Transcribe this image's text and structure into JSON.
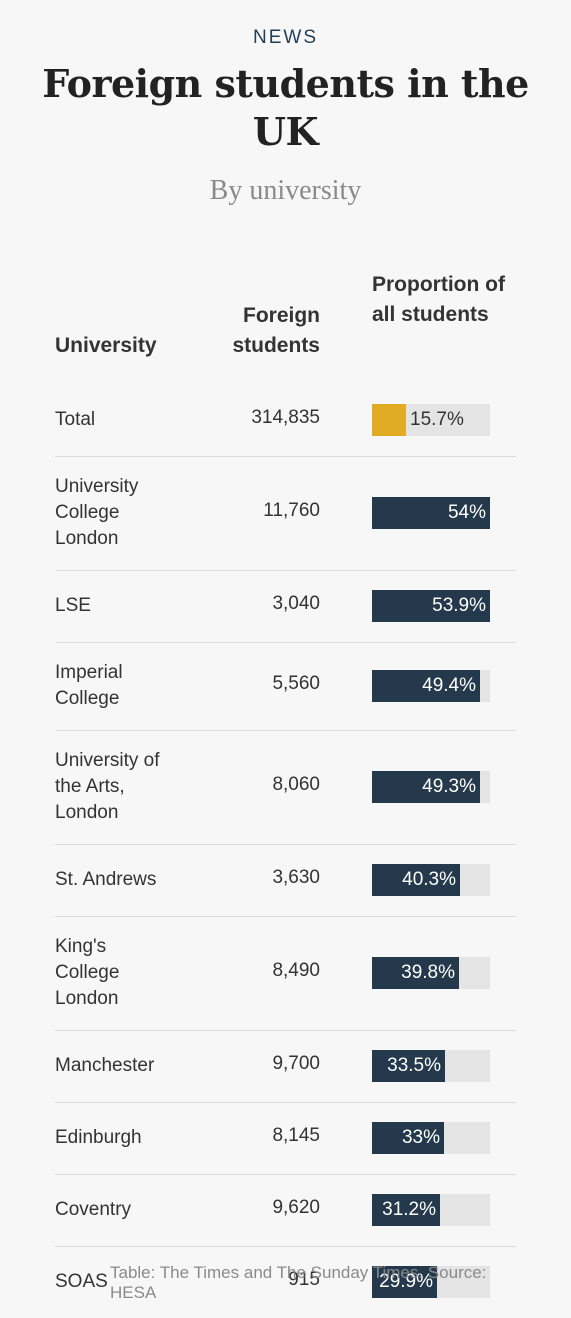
{
  "header": {
    "kicker": "NEWS",
    "title": "Foreign students in the UK",
    "subtitle": "By university"
  },
  "columns": {
    "university": "University",
    "foreign": "Foreign students",
    "proportion": "Proportion of all students"
  },
  "colors": {
    "total_bar": "#e1ac24",
    "bar": "#24394c",
    "track": "#e4e4e4"
  },
  "chart_data": {
    "type": "bar",
    "title": "Foreign students in the UK",
    "subtitle": "By university",
    "categories": [
      "Total",
      "University College London",
      "LSE",
      "Imperial College",
      "University of the Arts, London",
      "St. Andrews",
      "King's College London",
      "Manchester",
      "Edinburgh",
      "Coventry",
      "SOAS"
    ],
    "series": [
      {
        "name": "Foreign students",
        "values": [
          314835,
          11760,
          3040,
          5560,
          8060,
          3630,
          8490,
          9700,
          8145,
          9620,
          915
        ]
      },
      {
        "name": "Proportion of all students",
        "values": [
          15.7,
          54,
          53.9,
          49.4,
          49.3,
          40.3,
          39.8,
          33.5,
          33,
          31.2,
          29.9
        ]
      }
    ],
    "ylim": [
      0,
      54
    ],
    "rows": [
      {
        "name": "Total",
        "count": "314,835",
        "pct": 15.7,
        "label": "15.7%"
      },
      {
        "name": "University College London",
        "count": "11,760",
        "pct": 54,
        "label": "54%"
      },
      {
        "name": "LSE",
        "count": "3,040",
        "pct": 53.9,
        "label": "53.9%"
      },
      {
        "name": "Imperial College",
        "count": "5,560",
        "pct": 49.4,
        "label": "49.4%"
      },
      {
        "name": "University of the Arts, London",
        "count": "8,060",
        "pct": 49.3,
        "label": "49.3%"
      },
      {
        "name": "St. Andrews",
        "count": "3,630",
        "pct": 40.3,
        "label": "40.3%"
      },
      {
        "name": "King's College London",
        "count": "8,490",
        "pct": 39.8,
        "label": "39.8%"
      },
      {
        "name": "Manchester",
        "count": "9,700",
        "pct": 33.5,
        "label": "33.5%"
      },
      {
        "name": "Edinburgh",
        "count": "8,145",
        "pct": 33,
        "label": "33%"
      },
      {
        "name": "Coventry",
        "count": "9,620",
        "pct": 31.2,
        "label": "31.2%"
      },
      {
        "name": "SOAS",
        "count": "915",
        "pct": 29.9,
        "label": "29.9%"
      }
    ]
  },
  "footer": {
    "source": "Table: The Times and The Sunday Times. Source: HESA"
  }
}
